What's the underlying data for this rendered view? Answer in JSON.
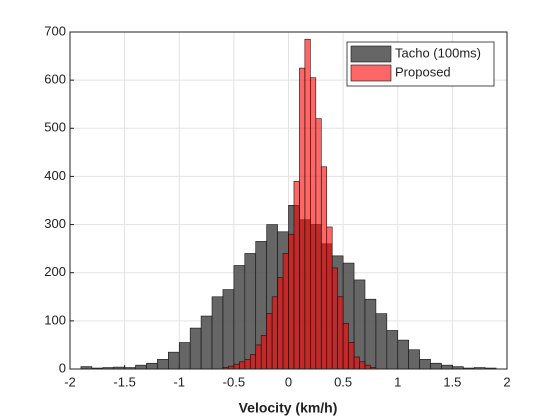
{
  "chart_data": {
    "type": "histogram",
    "xlabel": "Velocity (km/h)",
    "series": [
      {
        "name": "Tacho (100ms)",
        "color": "#555555",
        "opacity": 0.9,
        "bins": [
          -1.9,
          -1.8,
          -1.7,
          -1.6,
          -1.5,
          -1.4,
          -1.3,
          -1.2,
          -1.1,
          -1.0,
          -0.9,
          -0.8,
          -0.7,
          -0.6,
          -0.5,
          -0.4,
          -0.3,
          -0.2,
          -0.1,
          0,
          0.1,
          0.2,
          0.3,
          0.4,
          0.5,
          0.6,
          0.7,
          0.8,
          0.9,
          1.0,
          1.1,
          1.2,
          1.3,
          1.4,
          1.5,
          1.6,
          1.7,
          1.8,
          1.9
        ],
        "values": [
          5,
          2,
          3,
          4,
          3,
          8,
          12,
          20,
          35,
          55,
          85,
          110,
          150,
          165,
          215,
          240,
          265,
          300,
          285,
          340,
          310,
          300,
          260,
          235,
          220,
          185,
          145,
          115,
          80,
          60,
          40,
          20,
          12,
          8,
          5,
          2,
          3,
          2
        ]
      },
      {
        "name": "Proposed",
        "color": "#ff0000",
        "opacity": 0.6,
        "bins": [
          -0.6,
          -0.55,
          -0.5,
          -0.45,
          -0.4,
          -0.35,
          -0.3,
          -0.25,
          -0.2,
          -0.15,
          -0.1,
          -0.05,
          0,
          0.05,
          0.1,
          0.15,
          0.2,
          0.25,
          0.3,
          0.35,
          0.4,
          0.45,
          0.5,
          0.55,
          0.6,
          0.65,
          0.7,
          0.75,
          0.8
        ],
        "values": [
          3,
          6,
          10,
          15,
          20,
          30,
          50,
          70,
          115,
          150,
          190,
          240,
          280,
          390,
          625,
          685,
          605,
          520,
          420,
          295,
          210,
          150,
          95,
          55,
          25,
          15,
          8,
          3
        ]
      }
    ],
    "xlim": [
      -2,
      2
    ],
    "xticks": [
      -2,
      -1.5,
      -1,
      -0.5,
      0,
      0.5,
      1,
      1.5,
      2
    ],
    "ylim": [
      0,
      700
    ],
    "yticks": [
      0,
      100,
      200,
      300,
      400,
      500,
      600,
      700
    ],
    "grid": true,
    "legend": "northeast"
  }
}
